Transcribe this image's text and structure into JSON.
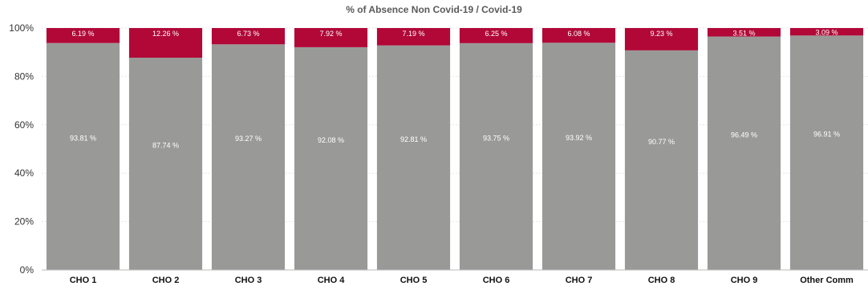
{
  "chart_data": {
    "type": "bar",
    "stacked": true,
    "title": "% of Absence Non Covid-19 / Covid-19",
    "xlabel": "",
    "ylabel": "",
    "ylim": [
      0,
      100
    ],
    "yticks": [
      "0%",
      "20%",
      "40%",
      "60%",
      "80%",
      "100%"
    ],
    "grid": true,
    "categories": [
      "CHO 1",
      "CHO 2",
      "CHO 3",
      "CHO 4",
      "CHO 5",
      "CHO 6",
      "CHO 7",
      "CHO 8",
      "CHO 9",
      "Other Comm"
    ],
    "series": [
      {
        "color": "#999a98",
        "values": [
          93.81,
          87.74,
          93.27,
          92.08,
          92.81,
          93.75,
          93.92,
          90.77,
          96.49,
          96.91
        ],
        "labels": [
          "93.81 %",
          "87.74 %",
          "93.27 %",
          "92.08 %",
          "92.81 %",
          "93.75 %",
          "93.92 %",
          "90.77 %",
          "96.49 %",
          "96.91 %"
        ]
      },
      {
        "color": "#b10837",
        "values": [
          6.19,
          12.26,
          6.73,
          7.92,
          7.19,
          6.25,
          6.08,
          9.23,
          3.51,
          3.09
        ],
        "labels": [
          "6.19 %",
          "12.26 %",
          "6.73 %",
          "7.92 %",
          "7.19 %",
          "6.25 %",
          "6.08 %",
          "9.23 %",
          "3.51 %",
          "3.09 %"
        ]
      }
    ]
  }
}
